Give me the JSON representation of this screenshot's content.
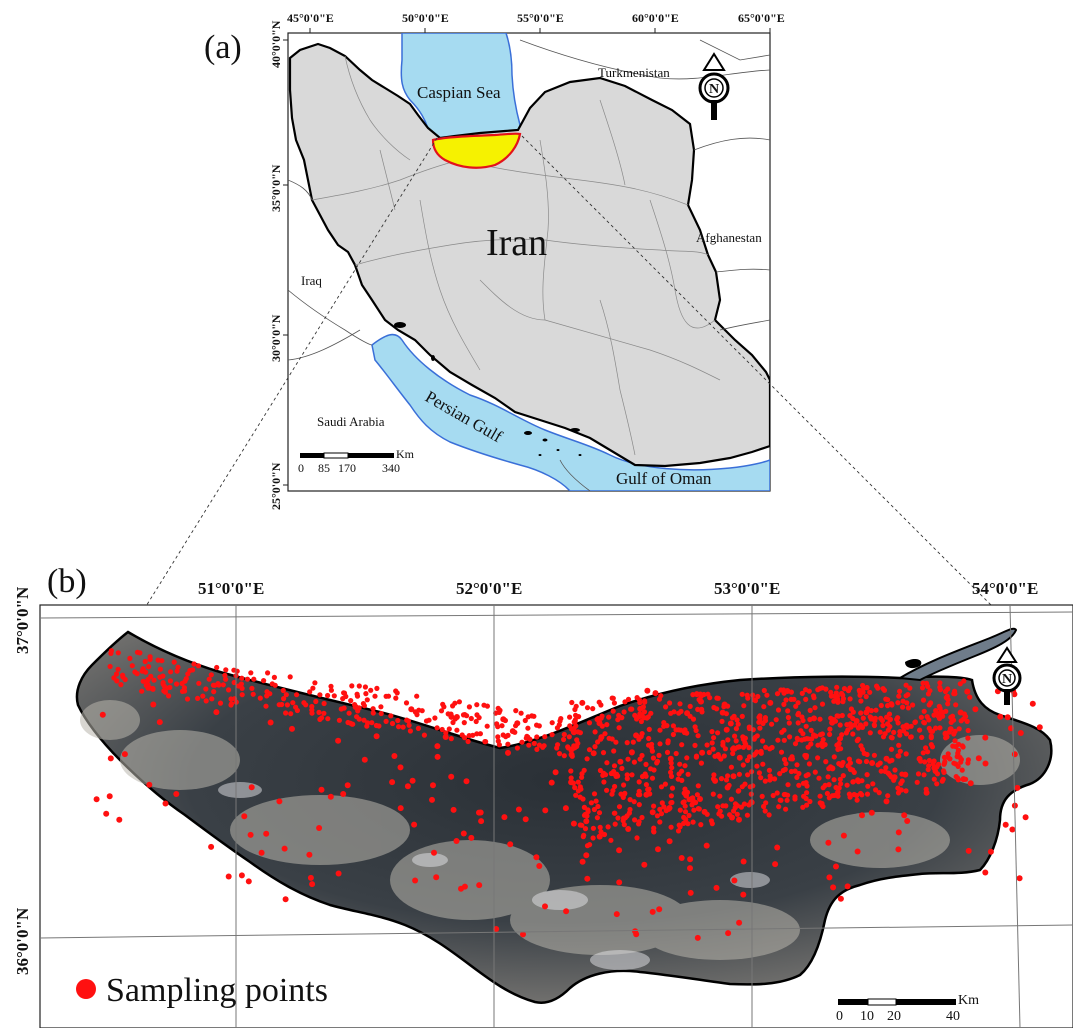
{
  "panel_a": {
    "label": "(a)",
    "top_longitudes": [
      "45°0'0\"E",
      "50°0'0\"E",
      "55°0'0\"E",
      "60°0'0\"E",
      "65°0'0\"E"
    ],
    "left_latitudes": [
      "40°0'0\"N",
      "35°0'0\"N",
      "30°0'0\"N",
      "25°0'0\"N"
    ],
    "country_label": "Iran",
    "neighbors": {
      "turkmenistan": "Turkmenistan",
      "afghanistan": "Afghanestan",
      "iraq": "Iraq",
      "saudi": "Saudi Arabia"
    },
    "seas": {
      "caspian": "Caspian Sea",
      "persian_gulf": "Persian Gulf",
      "gulf_of_oman": "Gulf of Oman"
    },
    "scale_bar": {
      "unit": "Km",
      "ticks": [
        "0",
        "85",
        "170",
        "340"
      ]
    },
    "north_arrow": "N",
    "colors": {
      "land": "#d9d9d9",
      "water": "#a6dbf1",
      "study_area": "#f6f200",
      "study_outline": "#e3121b"
    }
  },
  "panel_b": {
    "label": "(b)",
    "top_longitudes": [
      "51°0'0\"E",
      "52°0'0\"E",
      "53°0'0\"E",
      "54°0'0\"E"
    ],
    "left_latitudes": [
      "37°0'0\"N",
      "36°0'0\"N"
    ],
    "north_arrow": "N",
    "scale_bar": {
      "unit": "Km",
      "ticks": [
        "0",
        "10",
        "20",
        "40"
      ]
    },
    "legend": {
      "label": "Sampling points",
      "color": "#ff1010"
    }
  }
}
